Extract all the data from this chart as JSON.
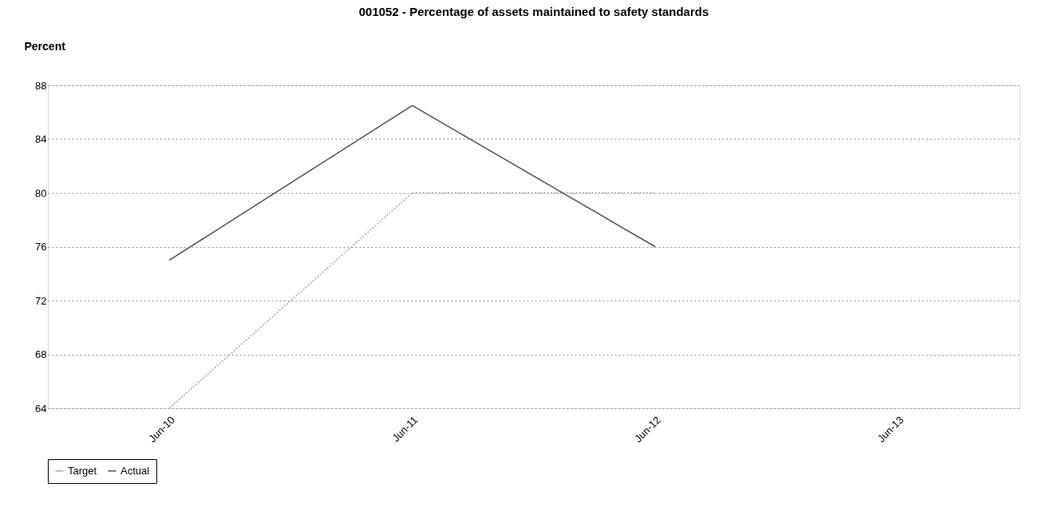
{
  "chart_data": {
    "type": "line",
    "title": "001052 - Percentage of assets maintained to safety standards",
    "ylabel": "Percent",
    "categories": [
      "Jun-10",
      "Jun-11",
      "Jun-12",
      "Jun-13"
    ],
    "series": [
      {
        "name": "Target",
        "color": "#a8a8a8",
        "line_style": "dotted",
        "values": [
          64,
          80,
          80,
          null
        ]
      },
      {
        "name": "Actual",
        "color": "#505050",
        "line_style": "solid",
        "values": [
          75,
          86.5,
          76,
          null
        ]
      }
    ],
    "ylim": [
      64,
      88
    ],
    "yticks": [
      64,
      68,
      72,
      76,
      80,
      84,
      88
    ],
    "grid": "y",
    "legend": "bottom",
    "marker": "none"
  }
}
